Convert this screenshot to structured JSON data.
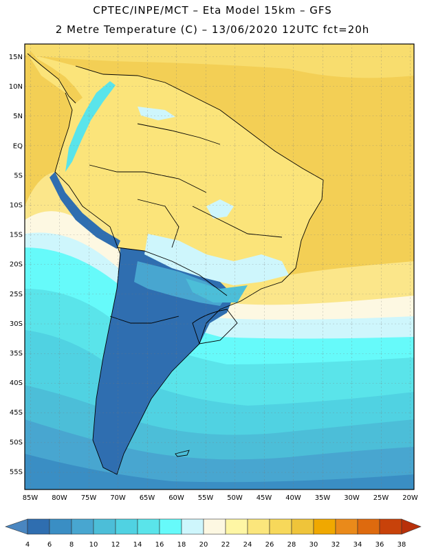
{
  "title_line1": "CPTEC/INPE/MCT –  Eta Model 15km – GFS",
  "title_line2": "2 Metre Temperature (C) – 13/06/2020 12UTC fct=20h",
  "lat_labels": [
    "15N",
    "10N",
    "5N",
    "EQ",
    "5S",
    "10S",
    "15S",
    "20S",
    "25S",
    "30S",
    "35S",
    "40S",
    "45S",
    "50S",
    "55S"
  ],
  "lon_labels": [
    "85W",
    "80W",
    "75W",
    "70W",
    "65W",
    "60W",
    "55W",
    "50W",
    "45W",
    "40W",
    "35W",
    "30W",
    "25W",
    "20W"
  ],
  "colorbar": {
    "values": [
      "4",
      "6",
      "8",
      "10",
      "12",
      "14",
      "16",
      "18",
      "20",
      "22",
      "24",
      "26",
      "28",
      "30",
      "32",
      "34",
      "36",
      "38"
    ],
    "colors": [
      "#4a86c0",
      "#2f6eb0",
      "#3a8ec4",
      "#48a6d0",
      "#4cbed8",
      "#50d2e2",
      "#5ae4ea",
      "#66fafa",
      "#cef6fc",
      "#fdf8e2",
      "#fef6a4",
      "#fbe67c",
      "#f7d85a",
      "#efc43a",
      "#f0a800",
      "#ea8a1a",
      "#de6a0e",
      "#c8420a",
      "#b8300a"
    ]
  },
  "legend_arrow_colors": {
    "left": "#4a86c0",
    "right": "#b8300a"
  }
}
